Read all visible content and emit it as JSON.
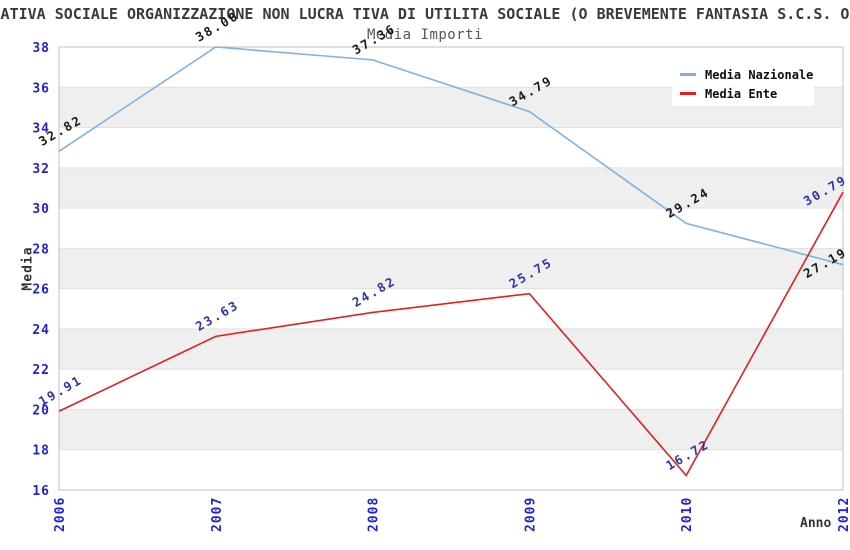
{
  "header_title": "RATIVA SOCIALE ORGANIZZAZIONE NON LUCRA TIVA DI UTILITA SOCIALE (O BREVEMENTE FANTASIA S.C.S. ON",
  "chart_data": {
    "type": "line",
    "title": "Media Importi",
    "xlabel": "Anno",
    "ylabel": "Media",
    "categories": [
      "2006",
      "2007",
      "2008",
      "2009",
      "2010",
      "2012"
    ],
    "series": [
      {
        "name": "Media Nazionale",
        "color": "#7fb2e5",
        "label_color": "#1a1a1a",
        "values": [
          32.82,
          38.0,
          37.36,
          34.79,
          29.24,
          27.19
        ]
      },
      {
        "name": "Media Ente",
        "color": "#e02020",
        "label_color": "#2b35a8",
        "values": [
          19.91,
          23.63,
          24.82,
          25.75,
          16.72,
          30.79
        ]
      }
    ],
    "ylim": [
      16,
      38
    ],
    "ytick_step": 2,
    "yticks": [
      16,
      18,
      20,
      22,
      24,
      26,
      28,
      30,
      32,
      34,
      36,
      38
    ],
    "grid": true,
    "band_color": "#efefef",
    "grid_color": "#e0e0e0",
    "border_color": "#c2c2c2",
    "axis_tick_color": "#2222d2",
    "legend_position": "top-right",
    "value_label_decimals": 2
  }
}
